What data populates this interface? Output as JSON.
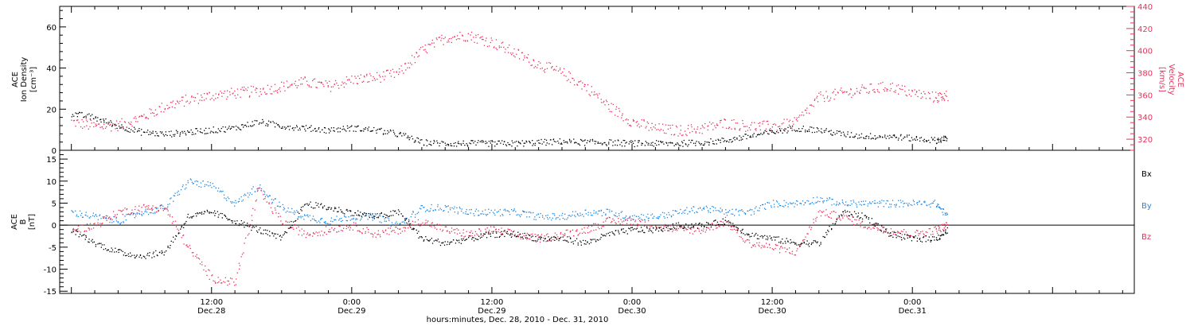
{
  "colors": {
    "black": "#000000",
    "pink": "#e8325a",
    "blue": "#1e88e5",
    "axis": "#000000"
  },
  "xaxis": {
    "caption": "hours:minutes, Dec. 28, 2010 - Dec. 31, 2010",
    "ticks": [
      {
        "time": "12:00",
        "date": "Dec.28",
        "hours": 12
      },
      {
        "time": "0:00",
        "date": "Dec.29",
        "hours": 24
      },
      {
        "time": "12:00",
        "date": "Dec.29",
        "hours": 36
      },
      {
        "time": "0:00",
        "date": "Dec.30",
        "hours": 48
      },
      {
        "time": "12:00",
        "date": "Dec.30",
        "hours": 60
      },
      {
        "time": "0:00",
        "date": "Dec.31",
        "hours": 72
      }
    ]
  },
  "panel1": {
    "left_label": {
      "line1": "ACE",
      "line2": "Ion Density",
      "line3": "[cm⁻³]"
    },
    "right_label": {
      "line1": "ACE",
      "line2": "Velocity",
      "line3": "[km/s]"
    }
  },
  "panel2": {
    "left_label": {
      "line1": "ACE",
      "line2": "B",
      "line3": "[nT]"
    },
    "legend": [
      {
        "label": "Bx",
        "color": "#000000"
      },
      {
        "label": "By",
        "color": "#1e88e5"
      },
      {
        "label": "Bz",
        "color": "#e8325a"
      }
    ]
  },
  "chart_data": [
    {
      "type": "scatter",
      "panel": "top",
      "x_units": "hours since Dec. 28, 2010 00:00",
      "xlim": [
        -1,
        91
      ],
      "series": [
        {
          "name": "ACE Ion Density",
          "axis": "left",
          "color": "#000000",
          "ylim": [
            0,
            70
          ],
          "ticks": [
            0,
            20,
            40,
            60
          ],
          "x": [
            0,
            2,
            4,
            6,
            8,
            10,
            12,
            14,
            16,
            18,
            20,
            22,
            24,
            26,
            28,
            30,
            32,
            34,
            36,
            38,
            40,
            42,
            44,
            46,
            48,
            50,
            52,
            54,
            56,
            58,
            60,
            62,
            64,
            66,
            68,
            70,
            72,
            74,
            75
          ],
          "values": [
            18,
            16,
            12,
            9,
            8,
            9,
            10,
            11,
            14,
            12,
            11,
            10,
            11,
            10,
            8,
            4,
            3.5,
            3.5,
            3.5,
            3.5,
            4,
            4.5,
            4,
            4,
            3.5,
            3.5,
            3.5,
            4,
            5,
            7,
            9,
            11,
            10,
            8,
            7,
            7,
            6,
            5,
            6
          ]
        },
        {
          "name": "ACE Velocity",
          "axis": "right",
          "color": "#e8325a",
          "ylim": [
            310,
            440
          ],
          "ticks": [
            320,
            340,
            360,
            380,
            400,
            420,
            440
          ],
          "x": [
            0,
            2,
            4,
            6,
            8,
            10,
            12,
            14,
            16,
            18,
            20,
            22,
            24,
            26,
            28,
            30,
            32,
            34,
            36,
            38,
            40,
            42,
            44,
            46,
            48,
            50,
            52,
            54,
            56,
            58,
            60,
            62,
            64,
            66,
            68,
            70,
            72,
            74,
            75
          ],
          "values": [
            336,
            332,
            333,
            340,
            350,
            356,
            360,
            362,
            364,
            368,
            372,
            368,
            374,
            376,
            380,
            400,
            412,
            414,
            408,
            398,
            388,
            380,
            368,
            350,
            336,
            330,
            328,
            330,
            335,
            332,
            332,
            335,
            358,
            362,
            365,
            368,
            362,
            358,
            360
          ]
        }
      ]
    },
    {
      "type": "scatter",
      "panel": "bottom",
      "x_units": "hours since Dec. 28, 2010 00:00",
      "xlim": [
        -1,
        91
      ],
      "ylim": [
        -15.5,
        17
      ],
      "yticks": [
        -15,
        -10,
        -5,
        0,
        5,
        10,
        15
      ],
      "series": [
        {
          "name": "Bx",
          "color": "#000000",
          "x": [
            0,
            2,
            4,
            6,
            8,
            10,
            12,
            14,
            16,
            18,
            20,
            22,
            24,
            26,
            28,
            30,
            32,
            34,
            36,
            38,
            40,
            42,
            44,
            46,
            48,
            50,
            52,
            54,
            56,
            58,
            60,
            62,
            64,
            66,
            68,
            70,
            72,
            74,
            75
          ],
          "values": [
            -1,
            -4,
            -6,
            -7,
            -6,
            2,
            3,
            1,
            -1,
            -3,
            5,
            4,
            3,
            2,
            3,
            -3,
            -4,
            -3,
            -2,
            -2,
            -3,
            -3,
            -4,
            -2,
            -1,
            -1,
            0,
            0,
            1,
            -2,
            -3,
            -4,
            -4,
            3,
            2,
            -2,
            -3,
            -3,
            -1
          ]
        },
        {
          "name": "By",
          "color": "#1e88e5",
          "x": [
            0,
            2,
            4,
            6,
            8,
            10,
            12,
            14,
            16,
            18,
            20,
            22,
            24,
            26,
            28,
            30,
            32,
            34,
            36,
            38,
            40,
            42,
            44,
            46,
            48,
            50,
            52,
            54,
            56,
            58,
            60,
            62,
            64,
            66,
            68,
            70,
            72,
            74,
            75
          ],
          "values": [
            3,
            2,
            1,
            3,
            4,
            10,
            9,
            5,
            9,
            4,
            2,
            1,
            2,
            2,
            0,
            4,
            4,
            3,
            3,
            3,
            2,
            2,
            3,
            3,
            2,
            2,
            3,
            4,
            3,
            3,
            5,
            5,
            6,
            5,
            5,
            5,
            5,
            5,
            2
          ]
        },
        {
          "name": "Bz",
          "color": "#e8325a",
          "x": [
            0,
            2,
            4,
            6,
            8,
            10,
            12,
            14,
            16,
            18,
            20,
            22,
            24,
            26,
            28,
            30,
            32,
            34,
            36,
            38,
            40,
            42,
            44,
            46,
            48,
            50,
            52,
            54,
            56,
            58,
            60,
            62,
            64,
            66,
            68,
            70,
            72,
            74,
            75
          ],
          "values": [
            -1,
            0,
            3,
            4,
            4,
            -5,
            -12,
            -13,
            8,
            1,
            -2,
            -1,
            0,
            -2,
            -1,
            1,
            -1,
            -2,
            -1,
            -2,
            -3,
            -2,
            -1,
            1,
            1,
            0,
            -1,
            -1,
            1,
            -4,
            -5,
            -6,
            3,
            2,
            0,
            -1,
            -2,
            -1,
            0
          ]
        }
      ]
    }
  ]
}
